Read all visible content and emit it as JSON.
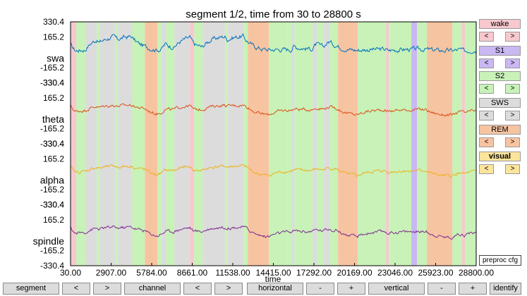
{
  "title": "segment 1/2, time from 30 to 28800 s",
  "x_axis": {
    "label": "time",
    "ticks": [
      "30.00",
      "2907.00",
      "5784.00",
      "8661.00",
      "11538.00",
      "14415.00",
      "17292.00",
      "20169.00",
      "23046.00",
      "25923.00",
      "28800.00"
    ]
  },
  "channels": [
    {
      "name": "swa",
      "color": "#0072bd",
      "ticks": [
        "330.4",
        "165.2",
        "-165.2",
        "-330.4"
      ]
    },
    {
      "name": "theta",
      "color": "#d95319",
      "ticks": [
        "330.4",
        "165.2",
        "-165.2",
        "-330.4"
      ]
    },
    {
      "name": "alpha",
      "color": "#edb120",
      "ticks": [
        "330.4",
        "165.2",
        "-165.2",
        "-330.4"
      ]
    },
    {
      "name": "spindle",
      "color": "#7e2f8e",
      "ticks": [
        "330.4",
        "165.2",
        "-165.2",
        "-330.4"
      ]
    }
  ],
  "stage_colors": {
    "wake": "#f7c9cf",
    "S1": "#c9b8f2",
    "S2": "#c8f2b8",
    "SWS": "#dcdcdc",
    "REM": "#f7c4a1",
    "visual": "#fbe49c"
  },
  "hypnogram": [
    [
      "wake",
      30,
      430
    ],
    [
      "S2",
      430,
      900
    ],
    [
      "S2",
      900,
      1100
    ],
    [
      "SWS",
      1100,
      1900
    ],
    [
      "S2",
      1900,
      2100
    ],
    [
      "SWS",
      2100,
      3200
    ],
    [
      "S2",
      3200,
      3400
    ],
    [
      "SWS",
      3400,
      4400
    ],
    [
      "S2",
      4400,
      5300
    ],
    [
      "REM",
      5300,
      6200
    ],
    [
      "S2",
      6200,
      6500
    ],
    [
      "SWS",
      6500,
      6800
    ],
    [
      "S2",
      6800,
      7400
    ],
    [
      "SWS",
      7400,
      8500
    ],
    [
      "wake",
      8500,
      8800
    ],
    [
      "S2",
      8800,
      9400
    ],
    [
      "SWS",
      9400,
      11000
    ],
    [
      "S2",
      11000,
      11200
    ],
    [
      "SWS",
      11200,
      12300
    ],
    [
      "S2",
      12300,
      12600
    ],
    [
      "REM",
      12600,
      14100
    ],
    [
      "S2",
      14100,
      15400
    ],
    [
      "S2",
      15400,
      15700
    ],
    [
      "SWS",
      15700,
      15900
    ],
    [
      "S2",
      15900,
      17200
    ],
    [
      "SWS",
      17200,
      17500
    ],
    [
      "S2",
      17500,
      18000
    ],
    [
      "SWS",
      18000,
      18400
    ],
    [
      "S2",
      18400,
      19000
    ],
    [
      "REM",
      19000,
      20400
    ],
    [
      "S2",
      20400,
      22400
    ],
    [
      "wake",
      22400,
      22600
    ],
    [
      "S2",
      22600,
      24200
    ],
    [
      "S1",
      24200,
      24600
    ],
    [
      "S2",
      24600,
      25300
    ],
    [
      "REM",
      25300,
      27100
    ],
    [
      "S2",
      27100,
      27800
    ],
    [
      "wake",
      27800,
      28000
    ],
    [
      "S2",
      28000,
      28800
    ]
  ],
  "side_buttons": {
    "wake": "wake",
    "S1": "S1",
    "S2": "S2",
    "SWS": "SWS",
    "REM": "REM",
    "visual": "visual",
    "prev": "<",
    "next": ">"
  },
  "preproc_label": "preproc cfg",
  "bottom_buttons": {
    "segment": "segment",
    "channel": "channel",
    "horizontal": "horizontal",
    "vertical": "vertical",
    "identify": "identify",
    "minus": "-",
    "plus": "+",
    "prev": "<",
    "next": ">"
  }
}
